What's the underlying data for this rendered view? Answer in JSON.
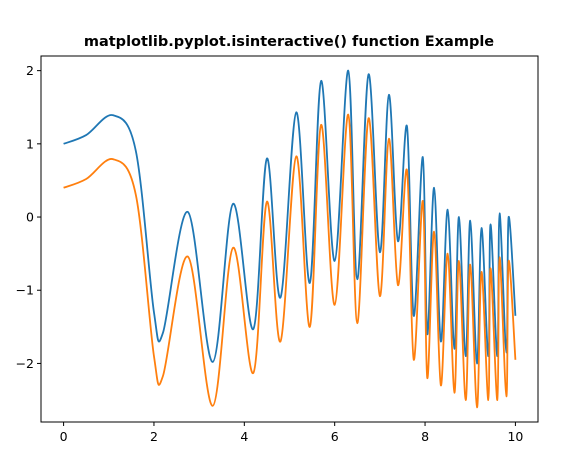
{
  "chart_data": {
    "type": "line",
    "title": "matplotlib.pyplot.isinteractive() function Example",
    "xlabel": "",
    "ylabel": "",
    "xlim": [
      -0.5,
      10.5
    ],
    "ylim": [
      -2.8,
      2.2
    ],
    "x_ticks": [
      0,
      2,
      4,
      6,
      8,
      10
    ],
    "x_tick_labels": [
      "0",
      "2",
      "4",
      "6",
      "8",
      "10"
    ],
    "y_ticks": [
      -2,
      -1,
      0,
      1,
      2
    ],
    "y_tick_labels": [
      "−2",
      "−1",
      "0",
      "1",
      "2"
    ],
    "grid": false,
    "legend": "none",
    "series": [
      {
        "color": "#1f77b4",
        "x": [
          0.0,
          0.5,
          1.1,
          1.6,
          2.0,
          2.2,
          2.75,
          3.3,
          3.75,
          4.2,
          4.5,
          4.8,
          5.15,
          5.45,
          5.7,
          6.0,
          6.3,
          6.5,
          6.75,
          7.0,
          7.2,
          7.4,
          7.6,
          7.75,
          7.95,
          8.05,
          8.2,
          8.35,
          8.5,
          8.65,
          8.75,
          8.9,
          9.0,
          9.15,
          9.25,
          9.4,
          9.45,
          9.6,
          9.65,
          9.8,
          9.85,
          10.0
        ],
        "y": [
          1.0,
          1.12,
          1.39,
          0.9,
          -1.3,
          -1.58,
          0.07,
          -1.98,
          0.18,
          -1.53,
          0.8,
          -1.1,
          1.43,
          -0.9,
          1.86,
          -0.6,
          2.0,
          -0.85,
          1.95,
          -0.48,
          1.67,
          -0.33,
          1.24,
          -1.35,
          0.82,
          -1.6,
          0.4,
          -1.7,
          0.1,
          -1.8,
          0.0,
          -1.9,
          -0.05,
          -2.0,
          -0.15,
          -1.9,
          -0.1,
          -1.9,
          0.05,
          -1.85,
          0.0,
          -1.35
        ]
      },
      {
        "color": "#ff7f0e",
        "x": [
          0.0,
          0.5,
          1.1,
          1.6,
          2.0,
          2.2,
          2.75,
          3.3,
          3.75,
          4.2,
          4.5,
          4.8,
          5.15,
          5.45,
          5.7,
          6.0,
          6.3,
          6.5,
          6.75,
          7.0,
          7.2,
          7.4,
          7.6,
          7.75,
          7.95,
          8.05,
          8.2,
          8.35,
          8.5,
          8.65,
          8.75,
          8.9,
          9.0,
          9.15,
          9.25,
          9.4,
          9.45,
          9.6,
          9.65,
          9.8,
          9.85,
          10.0
        ],
        "y": [
          0.4,
          0.52,
          0.79,
          0.3,
          -1.9,
          -2.17,
          -0.54,
          -2.58,
          -0.42,
          -2.13,
          0.21,
          -1.7,
          0.83,
          -1.5,
          1.26,
          -1.2,
          1.4,
          -1.45,
          1.35,
          -1.08,
          1.07,
          -0.93,
          0.64,
          -1.95,
          0.22,
          -2.2,
          -0.2,
          -2.3,
          -0.5,
          -2.4,
          -0.6,
          -2.5,
          -0.65,
          -2.6,
          -0.75,
          -2.5,
          -0.7,
          -2.5,
          -0.55,
          -2.45,
          -0.6,
          -1.95
        ]
      }
    ]
  }
}
